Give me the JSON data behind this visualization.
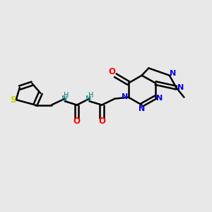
{
  "bg_color": "#e8e8e8",
  "bond_color": "#000000",
  "bond_width": 1.8,
  "figsize": [
    3.0,
    3.0
  ],
  "dpi": 100,
  "colors": {
    "S": "#cccc00",
    "N": "#0000ee",
    "O": "#ff0000",
    "NH": "#008080",
    "C": "#000000"
  }
}
